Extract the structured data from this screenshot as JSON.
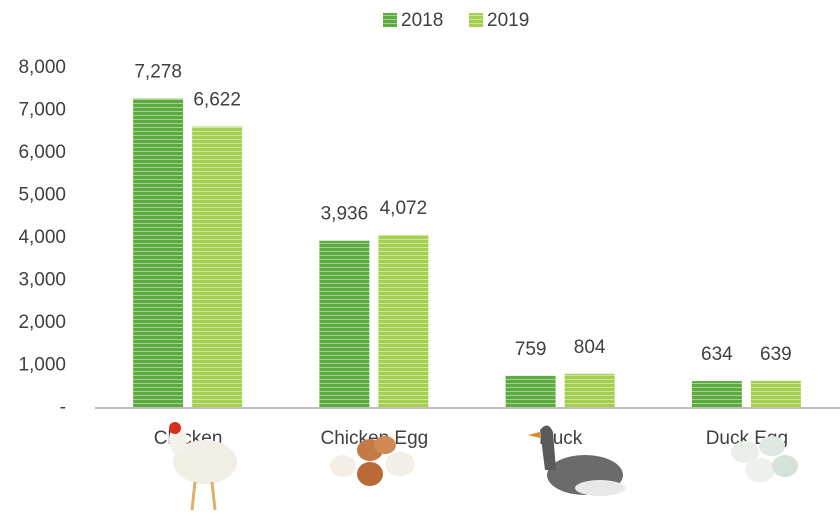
{
  "chart_data": {
    "type": "bar",
    "categories": [
      "Chicken",
      "Chicken Egg",
      "Duck",
      "Duck Egg"
    ],
    "series": [
      {
        "name": "2018",
        "color": "#5cab3e",
        "values": [
          7278,
          3936,
          759,
          634
        ],
        "value_labels": [
          "7,278",
          "3,936",
          "759",
          "634"
        ]
      },
      {
        "name": "2019",
        "color": "#a5cf4f",
        "values": [
          6622,
          4072,
          804,
          639
        ],
        "value_labels": [
          "6,622",
          "4,072",
          "804",
          "639"
        ]
      }
    ],
    "ylim": [
      0,
      8000
    ],
    "yticks": [
      {
        "value": 0,
        "label": "-"
      },
      {
        "value": 1000,
        "label": "1,000"
      },
      {
        "value": 2000,
        "label": "2,000"
      },
      {
        "value": 3000,
        "label": "3,000"
      },
      {
        "value": 4000,
        "label": "4,000"
      },
      {
        "value": 5000,
        "label": "5,000"
      },
      {
        "value": 6000,
        "label": "6,000"
      },
      {
        "value": 7000,
        "label": "7,000"
      },
      {
        "value": 8000,
        "label": "8,000"
      }
    ],
    "legend": "top",
    "grid": false
  }
}
